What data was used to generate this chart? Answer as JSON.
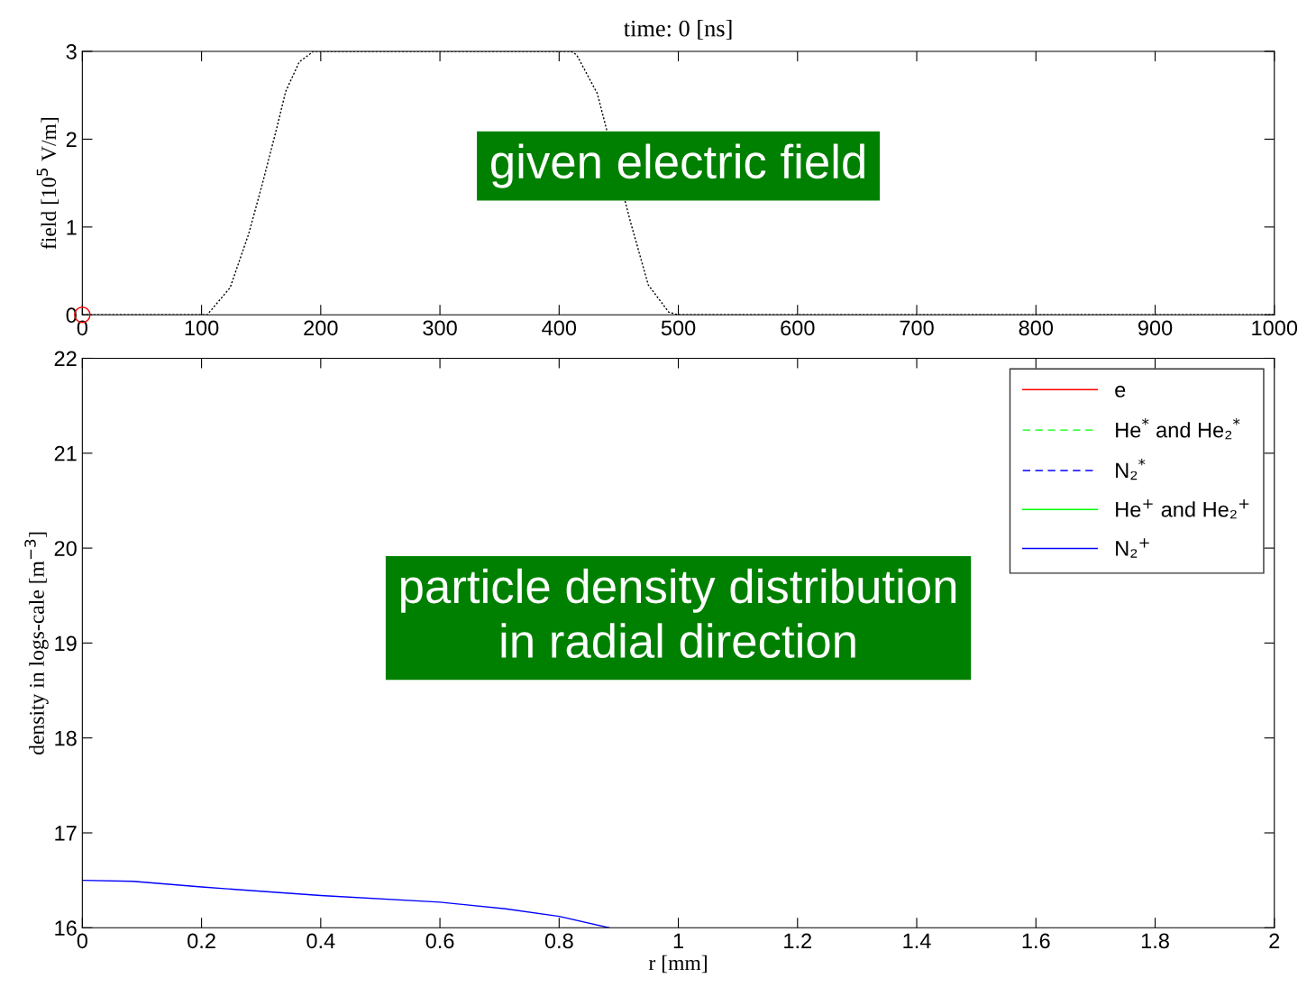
{
  "chart_data": [
    {
      "type": "line",
      "title": "time: 0 [ns]",
      "ylabel": "field [10$^{5}$ V/m]",
      "series": [
        {
          "type": "line",
          "color": "#000000",
          "line_style": "dotted",
          "marker": "none",
          "x": [
            0,
            100,
            104.7,
            124,
            139.5,
            151,
            163,
            170.5,
            182,
            194,
            300,
            410,
            414.7,
            432,
            460,
            465,
            474.8,
            492,
            500,
            1000
          ],
          "values": [
            0,
            0,
            0,
            0.31,
            0.92,
            1.49,
            2.12,
            2.54,
            2.88,
            3,
            3,
            3,
            2.96,
            2.52,
            1.05,
            0.81,
            0.34,
            0.03,
            0,
            0
          ]
        },
        {
          "type": "scatter",
          "color": "#ff0000",
          "marker": "circle",
          "x": [
            0
          ],
          "values": [
            0
          ]
        }
      ],
      "xlim": [
        0,
        1000
      ],
      "ylim": [
        0,
        3
      ],
      "xticks": [
        0,
        100,
        200,
        300,
        400,
        500,
        600,
        700,
        800,
        900,
        1000
      ],
      "yticks": [
        0,
        1,
        2,
        3
      ],
      "grid": false,
      "legend": false,
      "annotations": [
        "given electric field"
      ]
    },
    {
      "type": "line",
      "xlabel": "r [mm]",
      "ylabel": "density in logs-cale [m$^{−3}$]",
      "series": [
        {
          "name": "e",
          "color": "#ff0000",
          "line_style": "solid"
        },
        {
          "name": "He$^{*}$ and He₂$^{*}$",
          "color": "#00ff00",
          "line_style": "dashed"
        },
        {
          "name": "N₂$^{*}$",
          "color": "#0000ff",
          "line_style": "dashed"
        },
        {
          "name": "He$^{+}$ and He₂$^{+}$",
          "color": "#00ff00",
          "line_style": "solid"
        },
        {
          "name": "N₂$^{+}$",
          "color": "#0000ff",
          "line_style": "solid",
          "x": [
            0,
            0.085,
            0.2,
            0.4,
            0.6,
            0.71,
            0.8,
            0.884
          ],
          "values": [
            16.5,
            16.49,
            16.43,
            16.34,
            16.27,
            16.2,
            16.12,
            16.0
          ]
        }
      ],
      "xlim": [
        0,
        2
      ],
      "ylim": [
        16,
        22
      ],
      "xticks": [
        0,
        0.2,
        0.4,
        0.6,
        0.8,
        1,
        1.2,
        1.4,
        1.6,
        1.8,
        2
      ],
      "yticks": [
        16,
        17,
        18,
        19,
        20,
        21,
        22
      ],
      "grid": false,
      "legend": "top right",
      "annotations": [
        "particle density distribution\nin radial direction"
      ]
    }
  ]
}
